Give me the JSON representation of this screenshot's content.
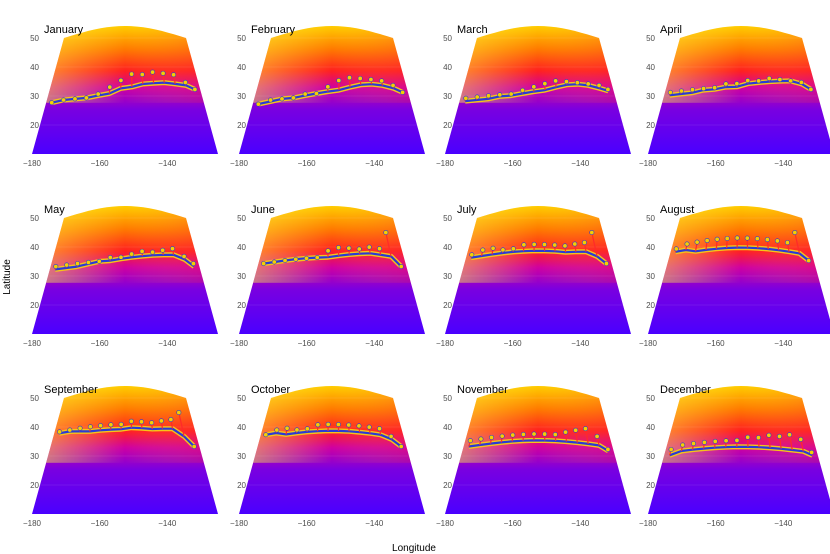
{
  "figure": {
    "xlabel": "Longitude",
    "ylabel": "Latitude"
  },
  "palette": {
    "low": "#3a00ff",
    "mid": "#c000c0",
    "high": "#ff1010",
    "top": "#ffff00",
    "front_line": "#2a3bd4",
    "front_band": "#f5c518",
    "marker": "#f5d000",
    "stem": "#ff2a2a"
  },
  "chart_data": [
    {
      "type": "heatmap",
      "title": "January",
      "xlim": [
        -180,
        -125
      ],
      "ylim": [
        10,
        50
      ],
      "x_ticks": [
        -180,
        -160,
        -140
      ],
      "y_ticks": [
        20,
        30,
        40,
        50
      ],
      "front_lon": [
        -178,
        -174,
        -170,
        -166,
        -162,
        -158,
        -154,
        -150,
        -146,
        -142,
        -138,
        -134,
        -130,
        -127
      ],
      "front_lat": [
        27.5,
        28,
        28,
        28,
        28.5,
        29,
        30.5,
        31,
        32,
        32.5,
        33,
        33,
        33,
        32
      ],
      "marker_lat": [
        27.5,
        28,
        28,
        28,
        29,
        31,
        33,
        35,
        35,
        36,
        36,
        36,
        34,
        32
      ]
    },
    {
      "type": "heatmap",
      "title": "February",
      "xlim": [
        -180,
        -125
      ],
      "ylim": [
        10,
        50
      ],
      "x_ticks": [
        -180,
        -160,
        -140
      ],
      "y_ticks": [
        20,
        30,
        40,
        50
      ],
      "front_lon": [
        -178,
        -174,
        -170,
        -166,
        -162,
        -158,
        -154,
        -150,
        -146,
        -142,
        -138,
        -134,
        -130,
        -127
      ],
      "front_lat": [
        27,
        27.5,
        28,
        28,
        28.5,
        29,
        29.5,
        30,
        31,
        32,
        32.5,
        32.5,
        32,
        31
      ],
      "marker_lat": [
        27,
        28,
        28,
        28,
        29,
        29,
        31,
        33,
        34,
        34,
        34,
        34,
        33,
        31
      ]
    },
    {
      "type": "heatmap",
      "title": "March",
      "xlim": [
        -180,
        -125
      ],
      "ylim": [
        10,
        50
      ],
      "x_ticks": [
        -180,
        -160,
        -140
      ],
      "y_ticks": [
        20,
        30,
        40,
        50
      ],
      "front_lon": [
        -178,
        -174,
        -170,
        -166,
        -162,
        -158,
        -154,
        -150,
        -146,
        -142,
        -138,
        -134,
        -130,
        -127
      ],
      "front_lat": [
        28,
        28,
        28,
        28.5,
        28.5,
        29,
        29.5,
        30,
        31,
        32,
        32.5,
        32.5,
        32,
        31.5
      ],
      "marker_lat": [
        29,
        29,
        29,
        29,
        29,
        30,
        31,
        32,
        33,
        33,
        33,
        33,
        33,
        32
      ]
    },
    {
      "type": "heatmap",
      "title": "April",
      "xlim": [
        -180,
        -125
      ],
      "ylim": [
        10,
        50
      ],
      "x_ticks": [
        -180,
        -160,
        -140
      ],
      "y_ticks": [
        20,
        30,
        40,
        50
      ],
      "front_lon": [
        -178,
        -174,
        -170,
        -166,
        -162,
        -158,
        -154,
        -150,
        -146,
        -142,
        -138,
        -134,
        -130,
        -127
      ],
      "front_lat": [
        30,
        30,
        30,
        30.5,
        30.5,
        31,
        31,
        32,
        32.5,
        33,
        33.5,
        34,
        33.5,
        32
      ],
      "marker_lat": [
        31,
        31,
        31,
        31,
        31,
        32,
        32,
        33,
        33,
        34,
        34,
        34,
        34,
        32
      ]
    },
    {
      "type": "heatmap",
      "title": "May",
      "xlim": [
        -180,
        -125
      ],
      "ylim": [
        10,
        50
      ],
      "x_ticks": [
        -180,
        -160,
        -140
      ],
      "y_ticks": [
        20,
        30,
        40,
        50
      ],
      "front_lon": [
        -178,
        -174,
        -170,
        -166,
        -162,
        -158,
        -154,
        -150,
        -146,
        -142,
        -138,
        -134,
        -130,
        -127
      ],
      "front_lat": [
        32,
        32,
        32,
        32.5,
        33,
        33,
        33.5,
        34,
        34.5,
        35,
        35.5,
        36,
        35,
        33
      ],
      "marker_lat": [
        33,
        33,
        33,
        33,
        33,
        34,
        34,
        35,
        36,
        36,
        37,
        38,
        36,
        34
      ]
    },
    {
      "type": "heatmap",
      "title": "June",
      "xlim": [
        -180,
        -125
      ],
      "ylim": [
        10,
        50
      ],
      "x_ticks": [
        -180,
        -160,
        -140
      ],
      "y_ticks": [
        20,
        30,
        40,
        50
      ],
      "front_lon": [
        -178,
        -174,
        -170,
        -166,
        -162,
        -158,
        -154,
        -150,
        -146,
        -142,
        -138,
        -134,
        -130,
        -127
      ],
      "front_lat": [
        34,
        34,
        34,
        34,
        34,
        34,
        34,
        34.5,
        35,
        35.5,
        36,
        36,
        36,
        33
      ],
      "marker_lat": [
        34,
        34,
        34,
        34,
        34,
        34,
        36,
        37,
        37,
        37,
        38,
        38,
        44,
        33
      ]
    },
    {
      "type": "heatmap",
      "title": "July",
      "xlim": [
        -180,
        -125
      ],
      "ylim": [
        10,
        50
      ],
      "x_ticks": [
        -180,
        -160,
        -140
      ],
      "y_ticks": [
        20,
        30,
        40,
        50
      ],
      "front_lon": [
        -178,
        -174,
        -170,
        -166,
        -162,
        -158,
        -154,
        -150,
        -146,
        -142,
        -138,
        -134,
        -130,
        -127
      ],
      "front_lat": [
        36,
        36,
        36,
        36,
        36,
        36,
        36,
        36,
        36,
        36,
        36.5,
        37,
        36,
        34
      ],
      "marker_lat": [
        37,
        38,
        38,
        37,
        37,
        38,
        38,
        38,
        38,
        38,
        39,
        40,
        44,
        34
      ]
    },
    {
      "type": "heatmap",
      "title": "August",
      "xlim": [
        -180,
        -125
      ],
      "ylim": [
        10,
        50
      ],
      "x_ticks": [
        -180,
        -160,
        -140
      ],
      "y_ticks": [
        20,
        30,
        40,
        50
      ],
      "front_lon": [
        -178,
        -174,
        -170,
        -166,
        -162,
        -158,
        -154,
        -150,
        -146,
        -142,
        -138,
        -134,
        -130,
        -127
      ],
      "front_lat": [
        38,
        38,
        37,
        37,
        37,
        37,
        37,
        37,
        37,
        37,
        37,
        37,
        37,
        35
      ],
      "marker_lat": [
        39,
        40,
        40,
        40,
        40,
        40,
        40,
        40,
        40,
        40,
        40,
        40,
        44,
        35
      ]
    },
    {
      "type": "heatmap",
      "title": "September",
      "xlim": [
        -180,
        -125
      ],
      "ylim": [
        10,
        50
      ],
      "x_ticks": [
        -180,
        -160,
        -140
      ],
      "y_ticks": [
        20,
        30,
        40,
        50
      ],
      "front_lon": [
        -178,
        -174,
        -170,
        -166,
        -162,
        -158,
        -154,
        -150,
        -146,
        -142,
        -138,
        -134,
        -130,
        -127
      ],
      "front_lat": [
        37.5,
        37.5,
        37,
        36.5,
        36.5,
        36.5,
        36.5,
        37,
        37,
        37,
        37.5,
        38,
        36,
        33
      ],
      "marker_lat": [
        38,
        38,
        38,
        38,
        38,
        38,
        38,
        39,
        39,
        39,
        40,
        41,
        44,
        33
      ]
    },
    {
      "type": "heatmap",
      "title": "October",
      "xlim": [
        -180,
        -125
      ],
      "ylim": [
        10,
        50
      ],
      "x_ticks": [
        -180,
        -160,
        -140
      ],
      "y_ticks": [
        20,
        30,
        40,
        50
      ],
      "front_lon": [
        -178,
        -174,
        -170,
        -166,
        -162,
        -158,
        -154,
        -150,
        -146,
        -142,
        -138,
        -134,
        -130,
        -127
      ],
      "front_lat": [
        37,
        37,
        36,
        36,
        36,
        36,
        36,
        36,
        36,
        36,
        36,
        36,
        35,
        33
      ],
      "marker_lat": [
        37,
        38,
        38,
        37,
        37,
        38,
        38,
        38,
        38,
        38,
        38,
        38,
        36,
        33
      ]
    },
    {
      "type": "heatmap",
      "title": "November",
      "xlim": [
        -180,
        -125
      ],
      "ylim": [
        10,
        50
      ],
      "x_ticks": [
        -180,
        -160,
        -140
      ],
      "y_ticks": [
        20,
        30,
        40,
        50
      ],
      "front_lon": [
        -178,
        -174,
        -170,
        -166,
        -162,
        -158,
        -154,
        -150,
        -146,
        -142,
        -138,
        -134,
        -130,
        -127
      ],
      "front_lat": [
        33,
        33,
        33,
        33,
        33,
        33,
        33,
        33,
        33,
        33,
        33,
        33,
        33,
        31.5
      ],
      "marker_lat": [
        35,
        35,
        35,
        35,
        35,
        35,
        35,
        35,
        35,
        36,
        37,
        38,
        36,
        32
      ]
    },
    {
      "type": "heatmap",
      "title": "December",
      "xlim": [
        -180,
        -125
      ],
      "ylim": [
        10,
        50
      ],
      "x_ticks": [
        -180,
        -160,
        -140
      ],
      "y_ticks": [
        20,
        30,
        40,
        50
      ],
      "front_lon": [
        -178,
        -174,
        -170,
        -166,
        -162,
        -158,
        -154,
        -150,
        -146,
        -142,
        -138,
        -134,
        -130,
        -127
      ],
      "front_lat": [
        30,
        31,
        31,
        31,
        31,
        31,
        31,
        31,
        31,
        31,
        31,
        31,
        31,
        30
      ],
      "marker_lat": [
        32,
        33,
        33,
        33,
        33,
        33,
        33,
        34,
        34,
        35,
        35,
        36,
        35,
        31
      ]
    }
  ]
}
